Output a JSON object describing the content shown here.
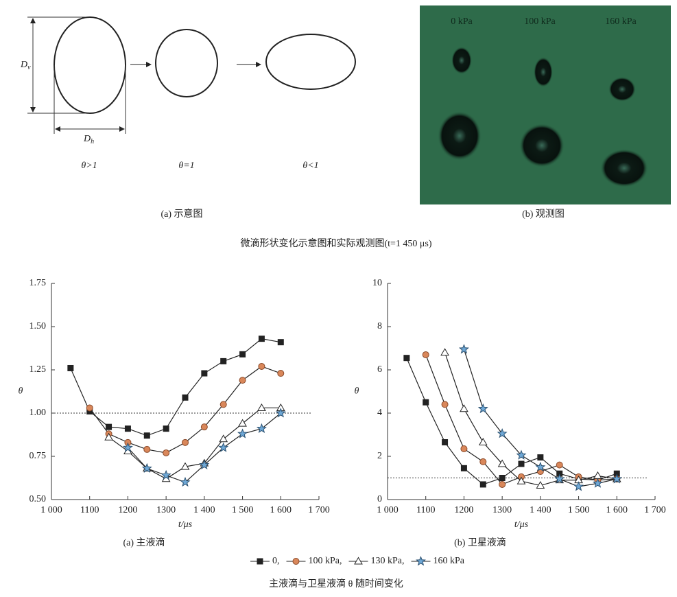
{
  "schematic": {
    "dv_label": "D",
    "dv_subscript": "v",
    "dh_label": "D",
    "dh_subscript": "h",
    "shape_labels": [
      "θ>1",
      "θ=1",
      "θ<1"
    ],
    "caption": "(a) 示意图"
  },
  "photo": {
    "labels": [
      "0 kPa",
      "100 kPa",
      "160 kPa"
    ],
    "caption": "(b) 观测图"
  },
  "top_caption": "微滴形状变化示意图和实际观测图(t=1 450 μs)",
  "chart_data": [
    {
      "type": "line",
      "caption": "(a) 主液滴",
      "xlabel": "t/μs",
      "ylabel": "θ",
      "x": [
        1050,
        1100,
        1150,
        1200,
        1250,
        1300,
        1350,
        1400,
        1450,
        1500,
        1550,
        1600
      ],
      "xlim": [
        1000,
        1700
      ],
      "xticks": [
        {
          "value": 1000,
          "label": "1 000"
        },
        1100,
        1200,
        1300,
        {
          "value": 1400,
          "label": "1 400"
        },
        {
          "value": 1500,
          "label": "1 500"
        },
        {
          "value": 1600,
          "label": "1 600"
        },
        {
          "value": 1700,
          "label": "1 700"
        }
      ],
      "ylim": [
        0.5,
        1.75
      ],
      "yticks": [
        {
          "value": 0.5,
          "label": "0.50"
        },
        0.75,
        {
          "value": 1,
          "label": "1.00"
        },
        1.25,
        {
          "value": 1.5,
          "label": "1.50"
        },
        1.75
      ],
      "reference_line": 1,
      "series": [
        {
          "name": "0,",
          "color": "#222222",
          "marker": "square",
          "values": [
            1.26,
            1.01,
            0.92,
            0.91,
            0.87,
            0.91,
            1.09,
            1.23,
            1.3,
            1.34,
            1.43,
            1.41
          ]
        },
        {
          "name": "100 kPa,",
          "color": "#d9875a",
          "marker": "circle",
          "values": [
            null,
            1.03,
            0.88,
            0.83,
            0.79,
            0.77,
            0.83,
            0.92,
            1.05,
            1.19,
            1.27,
            1.23
          ]
        },
        {
          "name": "130 kPa,",
          "color": "#ffffff",
          "marker": "triangle",
          "values": [
            null,
            null,
            0.86,
            0.78,
            0.68,
            0.62,
            0.69,
            0.71,
            0.85,
            0.94,
            1.03,
            1.03
          ]
        },
        {
          "name": "160 kPa",
          "color": "#6fa8d6",
          "marker": "star",
          "values": [
            null,
            null,
            null,
            0.8,
            0.68,
            0.64,
            0.6,
            0.7,
            0.8,
            0.88,
            0.91,
            1.0
          ]
        }
      ]
    },
    {
      "type": "line",
      "caption": "(b) 卫星液滴",
      "xlabel": "t/μs",
      "ylabel": "θ",
      "x": [
        1050,
        1100,
        1150,
        1200,
        1250,
        1300,
        1350,
        1400,
        1450,
        1500,
        1550,
        1600
      ],
      "xlim": [
        1000,
        1700
      ],
      "xticks": [
        {
          "value": 1000,
          "label": "1 000"
        },
        1100,
        1200,
        1300,
        {
          "value": 1400,
          "label": "1 400"
        },
        {
          "value": 1500,
          "label": "1 500"
        },
        {
          "value": 1600,
          "label": "1 600"
        },
        {
          "value": 1700,
          "label": "1 700"
        }
      ],
      "ylim": [
        0,
        10
      ],
      "yticks": [
        0,
        2,
        4,
        6,
        8,
        10
      ],
      "reference_line": 1,
      "series": [
        {
          "color": "#222222",
          "marker": "square",
          "values": [
            6.55,
            4.5,
            2.65,
            1.45,
            0.7,
            1.0,
            1.65,
            1.95,
            1.2,
            0.95,
            0.9,
            1.2
          ]
        },
        {
          "color": "#d9875a",
          "marker": "circle",
          "values": [
            null,
            6.7,
            4.4,
            2.35,
            1.75,
            0.7,
            1.05,
            1.3,
            1.6,
            1.05,
            0.9,
            0.95
          ]
        },
        {
          "color": "#ffffff",
          "marker": "triangle",
          "values": [
            null,
            null,
            6.8,
            4.2,
            2.65,
            1.65,
            0.85,
            0.65,
            0.9,
            0.9,
            1.1,
            0.95
          ]
        },
        {
          "color": "#6fa8d6",
          "marker": "star",
          "values": [
            null,
            null,
            null,
            6.95,
            4.2,
            3.05,
            2.05,
            1.5,
            0.95,
            0.6,
            0.75,
            0.95
          ]
        }
      ]
    }
  ],
  "bottom_caption": "主液滴与卫星液滴 θ 随时间变化"
}
